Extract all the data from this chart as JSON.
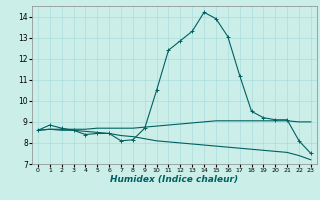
{
  "xlabel": "Humidex (Indice chaleur)",
  "xlim": [
    -0.5,
    23.5
  ],
  "ylim": [
    7,
    14.5
  ],
  "yticks": [
    7,
    8,
    9,
    10,
    11,
    12,
    13,
    14
  ],
  "xticks": [
    0,
    1,
    2,
    3,
    4,
    5,
    6,
    7,
    8,
    9,
    10,
    11,
    12,
    13,
    14,
    15,
    16,
    17,
    18,
    19,
    20,
    21,
    22,
    23
  ],
  "bg_color": "#cceee8",
  "line_color": "#006060",
  "grid_color": "#aadddd",
  "line1_x": [
    0,
    1,
    2,
    3,
    4,
    5,
    6,
    7,
    8,
    9,
    10,
    11,
    12,
    13,
    14,
    15,
    16,
    17,
    18,
    19,
    20,
    21,
    22,
    23
  ],
  "line1_y": [
    8.6,
    8.85,
    8.7,
    8.6,
    8.4,
    8.45,
    8.45,
    8.1,
    8.15,
    8.7,
    10.5,
    12.4,
    12.85,
    13.3,
    14.2,
    13.9,
    13.05,
    11.2,
    9.5,
    9.2,
    9.1,
    9.1,
    8.1,
    7.5
  ],
  "line2_x": [
    0,
    1,
    2,
    3,
    4,
    5,
    6,
    7,
    8,
    9,
    10,
    11,
    12,
    13,
    14,
    15,
    16,
    17,
    18,
    19,
    20,
    21,
    22,
    23
  ],
  "line2_y": [
    8.6,
    8.65,
    8.65,
    8.65,
    8.65,
    8.7,
    8.7,
    8.7,
    8.7,
    8.75,
    8.8,
    8.85,
    8.9,
    8.95,
    9.0,
    9.05,
    9.05,
    9.05,
    9.05,
    9.05,
    9.05,
    9.05,
    9.0,
    9.0
  ],
  "line3_x": [
    0,
    1,
    2,
    3,
    4,
    5,
    6,
    7,
    8,
    9,
    10,
    11,
    12,
    13,
    14,
    15,
    16,
    17,
    18,
    19,
    20,
    21,
    22,
    23
  ],
  "line3_y": [
    8.6,
    8.65,
    8.6,
    8.6,
    8.55,
    8.5,
    8.45,
    8.35,
    8.3,
    8.2,
    8.1,
    8.05,
    8.0,
    7.95,
    7.9,
    7.85,
    7.8,
    7.75,
    7.7,
    7.65,
    7.6,
    7.55,
    7.4,
    7.2
  ]
}
